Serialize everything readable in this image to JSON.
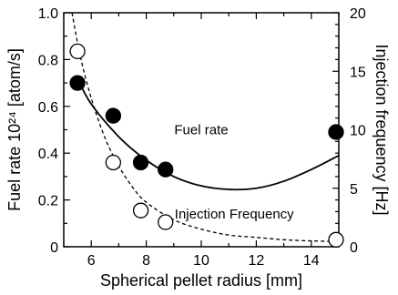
{
  "chart_data": {
    "type": "scatter",
    "xlabel": "Spherical pellet radius   [mm]",
    "ylabel_left": "Fuel rate   10²⁴ [atom/s]",
    "ylabel_right": "Injection frequency   [Hz]",
    "xlim": [
      5,
      15
    ],
    "ylim_left": [
      0,
      1.0
    ],
    "ylim_right": [
      0,
      20
    ],
    "x_ticks": [
      "6",
      "8",
      "10",
      "12",
      "14"
    ],
    "y_left_ticks": [
      "0",
      "0.2",
      "0.4",
      "0.6",
      "0.8",
      "1.0"
    ],
    "y_right_ticks": [
      "0",
      "5",
      "10",
      "15",
      "20"
    ],
    "grid": false,
    "series": [
      {
        "name": "Fuel rate",
        "axis": "left",
        "marker": "filled-circle",
        "points": [
          [
            5.5,
            0.7
          ],
          [
            6.8,
            0.56
          ],
          [
            7.8,
            0.36
          ],
          [
            8.7,
            0.33
          ],
          [
            14.9,
            0.49
          ]
        ],
        "fit": [
          [
            5.5,
            0.72
          ],
          [
            6.0,
            0.61
          ],
          [
            7.0,
            0.47
          ],
          [
            8.0,
            0.37
          ],
          [
            9.0,
            0.3
          ],
          [
            10.0,
            0.26
          ],
          [
            11.0,
            0.245
          ],
          [
            12.0,
            0.25
          ],
          [
            13.0,
            0.28
          ],
          [
            14.0,
            0.33
          ],
          [
            15.0,
            0.39
          ]
        ],
        "fit_style": "solid"
      },
      {
        "name": "Injection Frequency",
        "axis": "right",
        "marker": "open-circle",
        "points": [
          [
            5.5,
            16.7
          ],
          [
            6.8,
            7.2
          ],
          [
            7.8,
            3.1
          ],
          [
            8.7,
            2.1
          ],
          [
            14.9,
            0.6
          ]
        ],
        "fit": [
          [
            5.3,
            20.0
          ],
          [
            5.6,
            16.3
          ],
          [
            6.0,
            12.7
          ],
          [
            6.5,
            9.3
          ],
          [
            7.0,
            6.9
          ],
          [
            7.5,
            5.1
          ],
          [
            8.0,
            3.8
          ],
          [
            9.0,
            2.3
          ],
          [
            10.0,
            1.5
          ],
          [
            11.0,
            1.0
          ],
          [
            12.0,
            0.8
          ],
          [
            13.0,
            0.6
          ],
          [
            14.0,
            0.5
          ],
          [
            15.0,
            0.45
          ]
        ],
        "fit_style": "dashed"
      }
    ],
    "annotations": [
      {
        "text": "Fuel rate",
        "x": 10.0,
        "y": 0.48,
        "axis": "left"
      },
      {
        "text": "Injection Frequency",
        "x": 11.2,
        "y": 0.12,
        "axis": "left"
      }
    ]
  }
}
